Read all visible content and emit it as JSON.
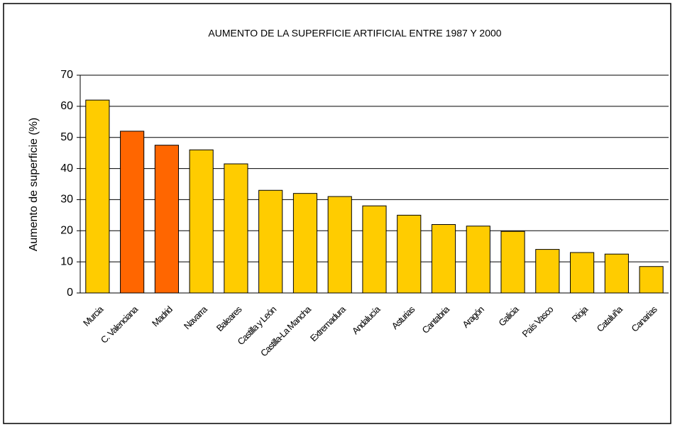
{
  "chart_data": {
    "type": "bar",
    "title": "AUMENTO DE LA SUPERFICIE ARTIFICIAL ENTRE 1987 Y 2000",
    "y_label": "Aumento de superficie (%)",
    "categories": [
      "Murcia",
      "C. Valenciana",
      "Madrid",
      "Navarra",
      "Baleares",
      "Castilla y León",
      "Castilla-La Mancha",
      "Extremadura",
      "Andalucía",
      "Asturias",
      "Cantabria",
      "Aragón",
      "Galicia",
      "País Vasco",
      "Rioja",
      "Cataluña",
      "Canarias"
    ],
    "values": [
      62,
      52,
      47.5,
      46,
      41.5,
      33,
      32,
      31,
      28,
      25,
      22,
      21.5,
      19.8,
      14,
      13,
      12.5,
      8.5
    ],
    "colors": [
      "#ffcc00",
      "#ff6600",
      "#ff6600",
      "#ffcc00",
      "#ffcc00",
      "#ffcc00",
      "#ffcc00",
      "#ffcc00",
      "#ffcc00",
      "#ffcc00",
      "#ffcc00",
      "#ffcc00",
      "#ffcc00",
      "#ffcc00",
      "#ffcc00",
      "#ffcc00",
      "#ffcc00"
    ],
    "ylim": [
      0,
      70
    ],
    "yticks": [
      0,
      10,
      20,
      30,
      40,
      50,
      60,
      70
    ],
    "grid": true
  }
}
